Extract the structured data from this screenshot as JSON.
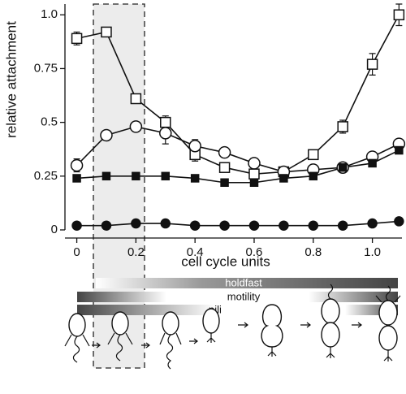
{
  "chart_data": {
    "type": "line",
    "x_label": "cell cycle units",
    "y_label": "relative attachment",
    "x": [
      0,
      0.1,
      0.2,
      0.3,
      0.4,
      0.5,
      0.6,
      0.7,
      0.8,
      0.9,
      1.0,
      1.09
    ],
    "series": [
      {
        "marker": "open-square",
        "color": "#111111",
        "values": [
          0.89,
          0.92,
          0.61,
          0.5,
          0.35,
          0.29,
          0.26,
          0.27,
          0.35,
          0.48,
          0.77,
          1.0
        ],
        "errors": [
          0.03,
          0.02,
          0.01,
          0.03,
          0.03,
          0.02,
          0.01,
          0.01,
          0.02,
          0.03,
          0.05,
          0.05
        ]
      },
      {
        "marker": "open-circle",
        "color": "#111111",
        "values": [
          0.3,
          0.44,
          0.48,
          0.45,
          0.39,
          0.36,
          0.31,
          0.27,
          0.28,
          0.29,
          0.34,
          0.4
        ],
        "errors": [
          0.03,
          0.01,
          0.01,
          0.05,
          0.03,
          0.01,
          0.01,
          0.01,
          0.01,
          0.02,
          0.02,
          0.01
        ]
      },
      {
        "marker": "filled-square",
        "color": "#111111",
        "values": [
          0.24,
          0.25,
          0.25,
          0.25,
          0.24,
          0.22,
          0.22,
          0.24,
          0.25,
          0.29,
          0.31,
          0.37
        ]
      },
      {
        "marker": "filled-circle",
        "color": "#111111",
        "values": [
          0.02,
          0.02,
          0.03,
          0.03,
          0.02,
          0.02,
          0.02,
          0.02,
          0.02,
          0.02,
          0.03,
          0.04
        ]
      }
    ],
    "xlim": [
      -0.04,
      1.1
    ],
    "ylim": [
      0,
      1.05
    ],
    "xticks": [
      0,
      0.2,
      0.4,
      0.6,
      0.8,
      {
        "value": 1,
        "label": "1.0"
      }
    ],
    "yticks": [
      0,
      0.25,
      0.5,
      0.75,
      {
        "value": 1,
        "label": "1.0"
      }
    ],
    "phase_bars": [
      "holdfast",
      "motility",
      "pili"
    ]
  }
}
